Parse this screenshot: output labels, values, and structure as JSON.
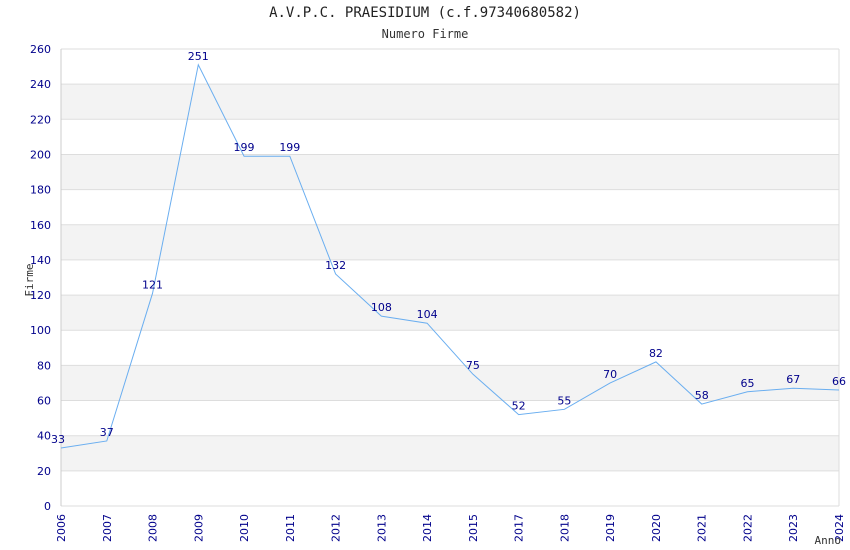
{
  "chart_data": {
    "type": "line",
    "title": "A.V.P.C. PRAESIDIUM (c.f.97340680582)",
    "subtitle": "Numero Firme",
    "xlabel": "Anno",
    "ylabel": "Firme",
    "categories": [
      "2006",
      "2007",
      "2008",
      "2009",
      "2010",
      "2011",
      "2012",
      "2013",
      "2014",
      "2015",
      "2017",
      "2018",
      "2019",
      "2020",
      "2021",
      "2022",
      "2023",
      "2024"
    ],
    "series": [
      {
        "values": [
          33,
          37,
          121,
          251,
          199,
          199,
          132,
          108,
          104,
          75,
          52,
          55,
          70,
          82,
          58,
          65,
          67,
          66
        ]
      }
    ],
    "ylim": [
      0,
      260
    ],
    "ytick_step": 20,
    "grid": "horizontal bands",
    "colors": {
      "line": "#6aaef0",
      "band": "#f3f3f3",
      "grid": "#dddddd",
      "tick": "#00008b"
    }
  }
}
